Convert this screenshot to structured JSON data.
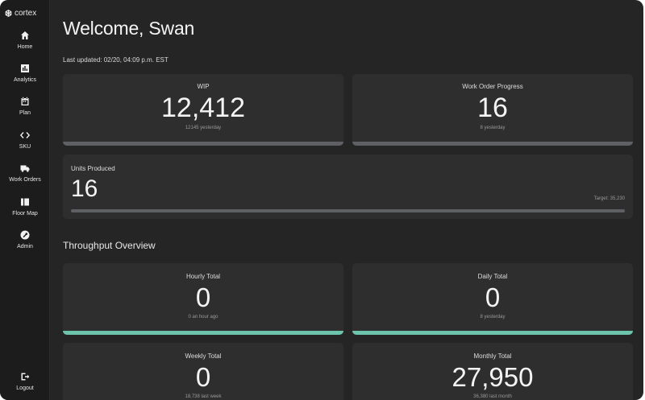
{
  "app": {
    "brand": "cortex",
    "brand_icon": "cortex-logo-icon"
  },
  "sidebar": {
    "items": [
      {
        "label": "Home",
        "icon": "home-icon"
      },
      {
        "label": "Analytics",
        "icon": "analytics-icon"
      },
      {
        "label": "Plan",
        "icon": "calendar-icon"
      },
      {
        "label": "SKU",
        "icon": "code-icon"
      },
      {
        "label": "Work Orders",
        "icon": "truck-icon"
      },
      {
        "label": "Floor Map",
        "icon": "map-icon"
      },
      {
        "label": "Admin",
        "icon": "wrench-icon"
      }
    ],
    "logout": {
      "label": "Logout",
      "icon": "logout-icon"
    }
  },
  "header": {
    "title": "Welcome, Swan",
    "updated": "Last updated: 02/20, 04:09 p.m. EST"
  },
  "cards": {
    "wip": {
      "label": "WIP",
      "value": "12,412",
      "sub": "12145 yesterday"
    },
    "work_order_progress": {
      "label": "Work Order Progress",
      "value": "16",
      "sub": "8 yesterday"
    },
    "units_produced": {
      "label": "Units Produced",
      "value": "16",
      "target": "Target: 35,230",
      "progress": 0.0005
    }
  },
  "throughput": {
    "title": "Throughput Overview",
    "hourly": {
      "label": "Hourly Total",
      "value": "0",
      "sub": "0 an hour ago"
    },
    "daily": {
      "label": "Daily Total",
      "value": "0",
      "sub": "8 yesterday"
    },
    "weekly": {
      "label": "Weekly Total",
      "value": "0",
      "sub": "18,738 last week"
    },
    "monthly": {
      "label": "Monthly Total",
      "value": "27,950",
      "sub": "36,380 last month"
    }
  },
  "colors": {
    "background": "#252525",
    "sidebar": "#1c1c1c",
    "card": "#2e2e2e",
    "accent": "#6cc4ad",
    "bar_neutral": "#5f6063"
  }
}
